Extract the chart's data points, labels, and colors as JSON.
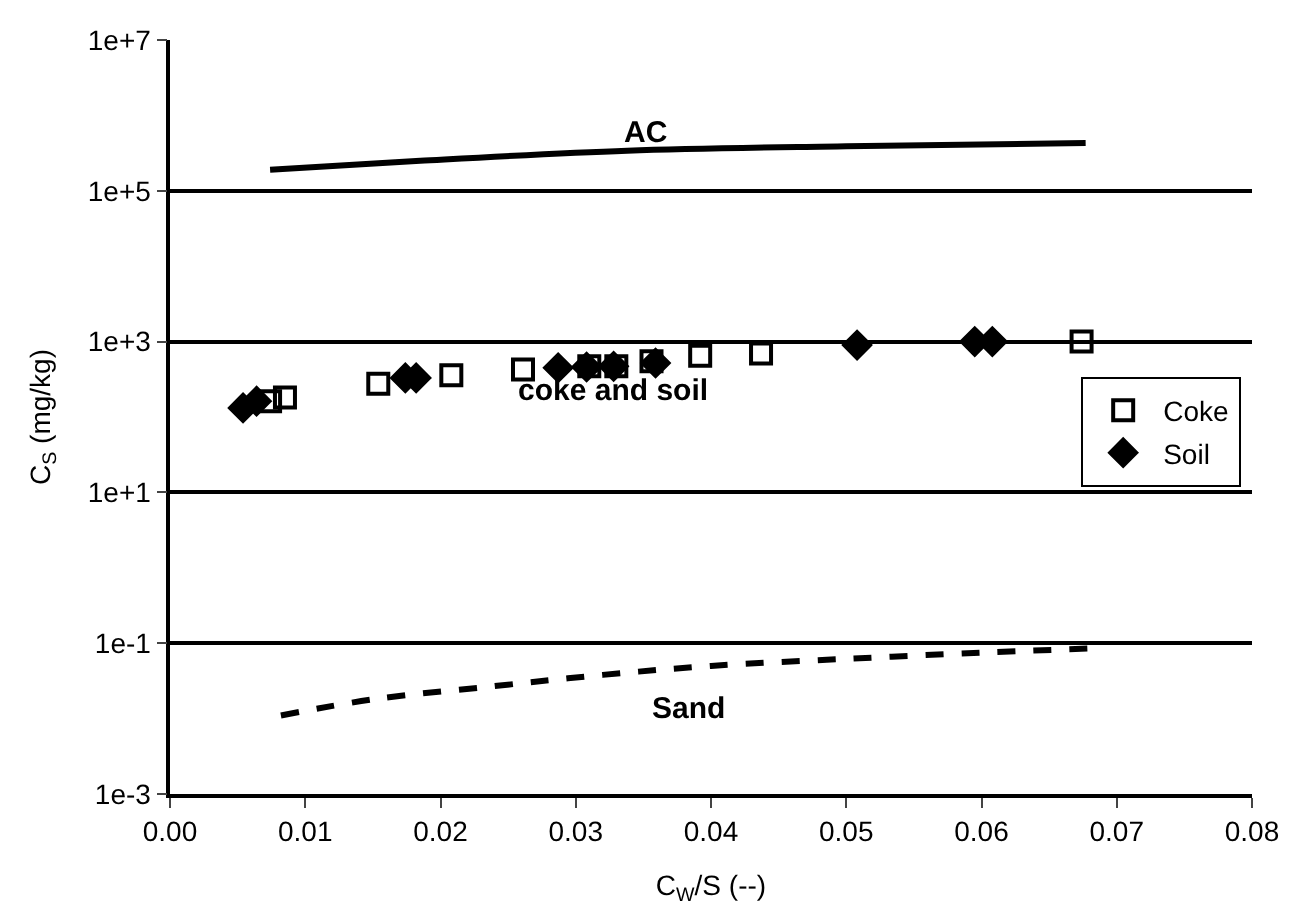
{
  "chart_data": {
    "type": "scatter",
    "xlabel": "C$_{W}$/S (--)",
    "ylabel": "C$_{S}$ (mg/kg)",
    "xlim": [
      0,
      0.08
    ],
    "xticks": [
      {
        "value": 0,
        "label": "0.00"
      },
      {
        "value": 0.01,
        "label": "0.01"
      },
      {
        "value": 0.02,
        "label": "0.02"
      },
      {
        "value": 0.03,
        "label": "0.03"
      },
      {
        "value": 0.04,
        "label": "0.04"
      },
      {
        "value": 0.05,
        "label": "0.05"
      },
      {
        "value": 0.06,
        "label": "0.06"
      },
      {
        "value": 0.07,
        "label": "0.07"
      },
      {
        "value": 0.08,
        "label": "0.08"
      }
    ],
    "ylim": [
      0.001,
      10000000
    ],
    "log": "y",
    "yticks": [
      {
        "value": 0.001,
        "label": "1e-3"
      },
      {
        "value": 0.1,
        "label": "1e-1"
      },
      {
        "value": 10,
        "label": "1e+1"
      },
      {
        "value": 1000,
        "label": "1e+3"
      },
      {
        "value": 100000,
        "label": "1e+5"
      },
      {
        "value": 10000000,
        "label": "1e+7"
      }
    ],
    "grid": "y",
    "legend": "right",
    "series": [
      {
        "name": "Coke",
        "marker": "square",
        "color": "#000000",
        "x": [
          0.0074,
          0.0085,
          0.0154,
          0.0208,
          0.0261,
          0.031,
          0.033,
          0.0356,
          0.0392,
          0.0437,
          0.0674
        ],
        "values": [
          162,
          182,
          277,
          357,
          425,
          470,
          470,
          550,
          650,
          695,
          1000
        ]
      },
      {
        "name": "Soil",
        "marker": "diamond",
        "color": "#000000",
        "x": [
          0.0054,
          0.0064,
          0.0174,
          0.0182,
          0.0287,
          0.0308,
          0.0328,
          0.0359,
          0.0508,
          0.0595,
          0.0608
        ],
        "values": [
          132,
          162,
          330,
          330,
          450,
          460,
          470,
          520,
          900,
          1000,
          1000
        ]
      },
      {
        "type": "line",
        "line_style": "solid",
        "color": "#000000",
        "x": [
          0.0074,
          0.0185,
          0.0338,
          0.05,
          0.0677
        ],
        "values": [
          190000,
          250000,
          340000,
          390000,
          430000
        ]
      },
      {
        "type": "line",
        "line_style": "dashed",
        "color": "#000000",
        "x": [
          0.0082,
          0.015,
          0.024,
          0.032,
          0.04,
          0.05,
          0.06,
          0.068
        ],
        "values": [
          0.011,
          0.018,
          0.027,
          0.038,
          0.05,
          0.062,
          0.075,
          0.085
        ]
      }
    ],
    "annotations": [
      "AC",
      "coke and soil",
      "Sand"
    ]
  }
}
